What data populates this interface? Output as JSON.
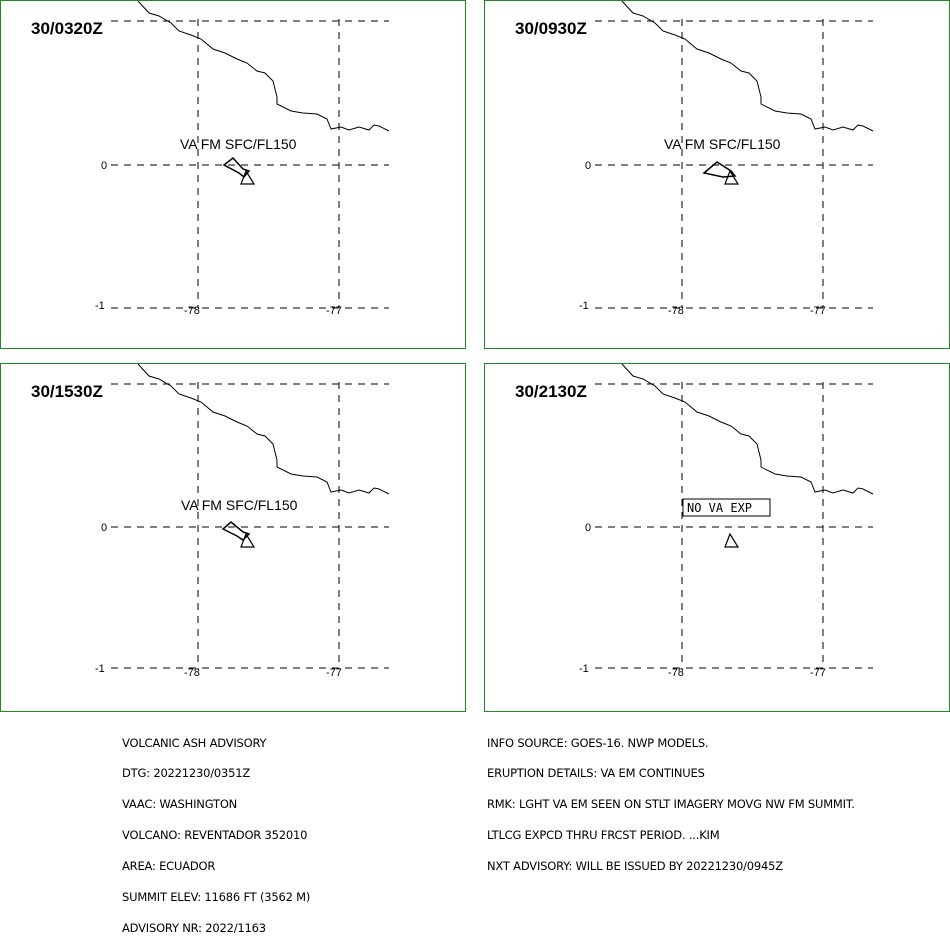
{
  "panels": [
    {
      "time": "30/0320Z",
      "label": "VA FM SFC/FL150",
      "boxed": false,
      "shape": "poly"
    },
    {
      "time": "30/0930Z",
      "label": "VA FM SFC/FL150",
      "boxed": false,
      "shape": "poly"
    },
    {
      "time": "30/1530Z",
      "label": "VA FM SFC/FL150",
      "boxed": false,
      "shape": "poly"
    },
    {
      "time": "30/2130Z",
      "label": "NO VA EXP",
      "boxed": true,
      "shape": "none"
    }
  ],
  "grid": {
    "lat_labels": [
      "0",
      "-1"
    ],
    "lon_labels": [
      "-78",
      "-77"
    ]
  },
  "advisory_left": [
    "VOLCANIC ASH ADVISORY",
    "DTG: 20221230/0351Z",
    "VAAC: WASHINGTON",
    "VOLCANO: REVENTADOR 352010",
    "AREA: ECUADOR",
    "SUMMIT ELEV: 11686 FT (3562 M)",
    "ADVISORY NR: 2022/1163"
  ],
  "advisory_right": [
    "INFO SOURCE: GOES-16. NWP MODELS.",
    "ERUPTION DETAILS: VA EM CONTINUES",
    "RMK: LGHT VA EM SEEN ON STLT IMAGERY MOVG NW FM SUMMIT.",
    "LTLCG EXPCD THRU FRCST PERIOD. ...KIM",
    "NXT ADVISORY: WILL BE ISSUED BY 20221230/0945Z"
  ],
  "colors": {
    "panel_border": "#1f8a1f",
    "ink": "#000000"
  }
}
